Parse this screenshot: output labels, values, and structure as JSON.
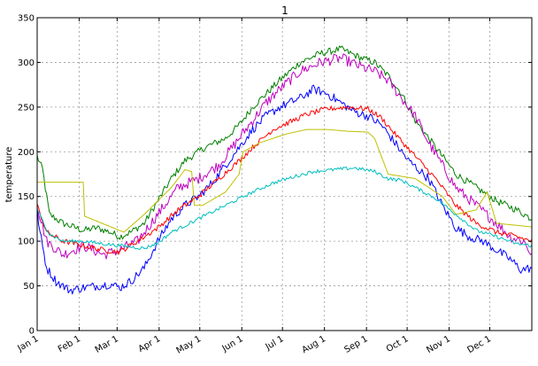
{
  "chart_data": {
    "type": "line",
    "title": "1",
    "xlabel": "",
    "ylabel": "temperature",
    "xlim": [
      1,
      366
    ],
    "ylim": [
      0,
      350
    ],
    "grid": true,
    "grid_style": "dotted",
    "y_ticks": [
      0,
      50,
      100,
      150,
      200,
      250,
      300,
      350
    ],
    "x_ticks": [
      {
        "day": 1,
        "label": "Jan  1"
      },
      {
        "day": 32,
        "label": "Feb  1"
      },
      {
        "day": 60,
        "label": "Mar  1"
      },
      {
        "day": 91,
        "label": "Apr  1"
      },
      {
        "day": 121,
        "label": "May  1"
      },
      {
        "day": 152,
        "label": "Jun  1"
      },
      {
        "day": 182,
        "label": "Jul  1"
      },
      {
        "day": 213,
        "label": "Aug  1"
      },
      {
        "day": 244,
        "label": "Sep  1"
      },
      {
        "day": 274,
        "label": "Oct  1"
      },
      {
        "day": 305,
        "label": "Nov  1"
      },
      {
        "day": 335,
        "label": "Dec  1"
      }
    ],
    "series": [
      {
        "color": "#008000",
        "noise": 4,
        "points": [
          [
            1,
            195
          ],
          [
            5,
            180
          ],
          [
            10,
            130
          ],
          [
            20,
            120
          ],
          [
            35,
            112
          ],
          [
            45,
            115
          ],
          [
            55,
            110
          ],
          [
            62,
            105
          ],
          [
            70,
            110
          ],
          [
            80,
            120
          ],
          [
            90,
            145
          ],
          [
            100,
            170
          ],
          [
            110,
            190
          ],
          [
            125,
            205
          ],
          [
            140,
            215
          ],
          [
            150,
            230
          ],
          [
            160,
            250
          ],
          [
            170,
            265
          ],
          [
            180,
            280
          ],
          [
            195,
            300
          ],
          [
            210,
            310
          ],
          [
            225,
            315
          ],
          [
            240,
            305
          ],
          [
            250,
            300
          ],
          [
            260,
            285
          ],
          [
            270,
            265
          ],
          [
            280,
            235
          ],
          [
            290,
            215
          ],
          [
            300,
            195
          ],
          [
            310,
            175
          ],
          [
            325,
            160
          ],
          [
            340,
            145
          ],
          [
            355,
            135
          ],
          [
            366,
            125
          ]
        ]
      },
      {
        "color": "#bf00bf",
        "noise": 6,
        "points": [
          [
            1,
            140
          ],
          [
            8,
            100
          ],
          [
            20,
            85
          ],
          [
            35,
            95
          ],
          [
            50,
            85
          ],
          [
            62,
            90
          ],
          [
            75,
            100
          ],
          [
            90,
            130
          ],
          [
            105,
            160
          ],
          [
            120,
            170
          ],
          [
            135,
            185
          ],
          [
            150,
            215
          ],
          [
            160,
            235
          ],
          [
            170,
            255
          ],
          [
            180,
            270
          ],
          [
            195,
            290
          ],
          [
            210,
            300
          ],
          [
            225,
            305
          ],
          [
            240,
            295
          ],
          [
            250,
            290
          ],
          [
            260,
            280
          ],
          [
            270,
            260
          ],
          [
            280,
            240
          ],
          [
            290,
            210
          ],
          [
            300,
            185
          ],
          [
            310,
            160
          ],
          [
            325,
            140
          ],
          [
            340,
            120
          ],
          [
            350,
            105
          ],
          [
            360,
            100
          ],
          [
            366,
            85
          ]
        ]
      },
      {
        "color": "#0000ff",
        "noise": 5,
        "points": [
          [
            1,
            135
          ],
          [
            3,
            110
          ],
          [
            8,
            70
          ],
          [
            15,
            55
          ],
          [
            25,
            45
          ],
          [
            35,
            48
          ],
          [
            45,
            50
          ],
          [
            55,
            52
          ],
          [
            62,
            48
          ],
          [
            70,
            55
          ],
          [
            80,
            70
          ],
          [
            90,
            100
          ],
          [
            100,
            125
          ],
          [
            110,
            140
          ],
          [
            120,
            150
          ],
          [
            130,
            165
          ],
          [
            140,
            185
          ],
          [
            150,
            205
          ],
          [
            160,
            225
          ],
          [
            170,
            240
          ],
          [
            180,
            250
          ],
          [
            195,
            260
          ],
          [
            205,
            270
          ],
          [
            215,
            265
          ],
          [
            225,
            255
          ],
          [
            235,
            245
          ],
          [
            245,
            240
          ],
          [
            255,
            230
          ],
          [
            265,
            210
          ],
          [
            275,
            190
          ],
          [
            290,
            170
          ],
          [
            300,
            140
          ],
          [
            310,
            115
          ],
          [
            320,
            105
          ],
          [
            330,
            100
          ],
          [
            340,
            90
          ],
          [
            350,
            80
          ],
          [
            358,
            68
          ],
          [
            366,
            70
          ]
        ]
      },
      {
        "color": "#ff0000",
        "noise": 3,
        "points": [
          [
            1,
            140
          ],
          [
            8,
            110
          ],
          [
            20,
            100
          ],
          [
            35,
            95
          ],
          [
            50,
            90
          ],
          [
            62,
            88
          ],
          [
            75,
            100
          ],
          [
            90,
            115
          ],
          [
            105,
            135
          ],
          [
            120,
            150
          ],
          [
            135,
            170
          ],
          [
            150,
            190
          ],
          [
            160,
            205
          ],
          [
            175,
            225
          ],
          [
            190,
            235
          ],
          [
            200,
            242
          ],
          [
            215,
            248
          ],
          [
            230,
            250
          ],
          [
            245,
            248
          ],
          [
            255,
            238
          ],
          [
            265,
            220
          ],
          [
            280,
            195
          ],
          [
            295,
            170
          ],
          [
            310,
            140
          ],
          [
            325,
            120
          ],
          [
            340,
            110
          ],
          [
            355,
            105
          ],
          [
            366,
            100
          ]
        ]
      },
      {
        "color": "#bfbf00",
        "noise": 0,
        "points": [
          [
            1,
            166
          ],
          [
            35,
            166
          ],
          [
            36,
            128
          ],
          [
            65,
            110
          ],
          [
            80,
            130
          ],
          [
            100,
            160
          ],
          [
            110,
            180
          ],
          [
            115,
            178
          ],
          [
            117,
            140
          ],
          [
            123,
            140
          ],
          [
            140,
            155
          ],
          [
            145,
            165
          ],
          [
            150,
            175
          ],
          [
            153,
            200
          ],
          [
            165,
            210
          ],
          [
            185,
            220
          ],
          [
            200,
            225
          ],
          [
            215,
            225
          ],
          [
            230,
            223
          ],
          [
            245,
            222
          ],
          [
            250,
            215
          ],
          [
            260,
            175
          ],
          [
            280,
            170
          ],
          [
            300,
            150
          ],
          [
            310,
            130
          ],
          [
            325,
            135
          ],
          [
            333,
            155
          ],
          [
            340,
            120
          ],
          [
            366,
            116
          ]
        ]
      },
      {
        "color": "#00bfbf",
        "noise": 2,
        "points": [
          [
            1,
            135
          ],
          [
            10,
            108
          ],
          [
            20,
            100
          ],
          [
            35,
            100
          ],
          [
            50,
            97
          ],
          [
            62,
            95
          ],
          [
            80,
            92
          ],
          [
            90,
            98
          ],
          [
            100,
            110
          ],
          [
            120,
            125
          ],
          [
            140,
            140
          ],
          [
            160,
            155
          ],
          [
            175,
            165
          ],
          [
            190,
            172
          ],
          [
            205,
            178
          ],
          [
            220,
            180
          ],
          [
            235,
            182
          ],
          [
            250,
            178
          ],
          [
            260,
            170
          ],
          [
            270,
            168
          ],
          [
            280,
            160
          ],
          [
            295,
            148
          ],
          [
            310,
            130
          ],
          [
            325,
            112
          ],
          [
            340,
            105
          ],
          [
            355,
            97
          ],
          [
            366,
            95
          ]
        ]
      }
    ]
  }
}
